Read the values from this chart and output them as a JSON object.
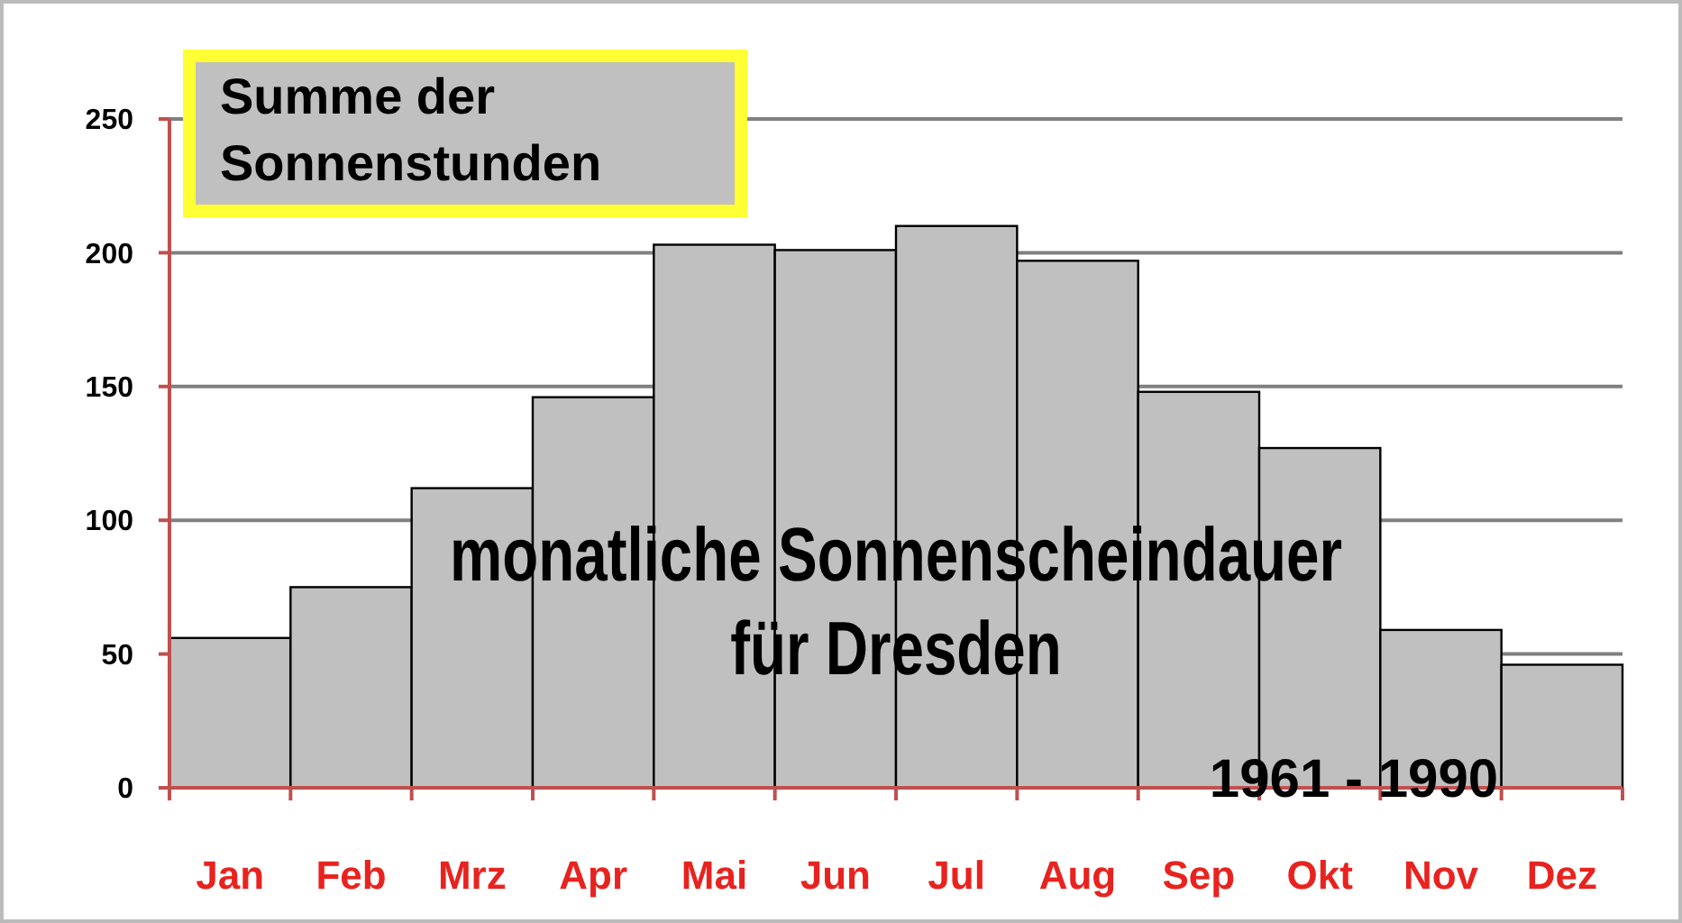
{
  "chart_data": {
    "type": "bar",
    "title": "Summe der\nSonnenstunden",
    "categories": [
      "Jan",
      "Feb",
      "Mrz",
      "Apr",
      "Mai",
      "Jun",
      "Jul",
      "Aug",
      "Sep",
      "Okt",
      "Nov",
      "Dez"
    ],
    "values": [
      56,
      75,
      112,
      146,
      203,
      201,
      210,
      197,
      148,
      127,
      59,
      46
    ],
    "color": "#c0c0c0",
    "ylim": [
      0,
      250
    ],
    "yticks": [
      0,
      50,
      100,
      150,
      200,
      250
    ],
    "grid": "y",
    "annotations": [
      "monatliche Sonnenscheindauer\nfür  Dresden",
      "1961 - 1990"
    ]
  }
}
